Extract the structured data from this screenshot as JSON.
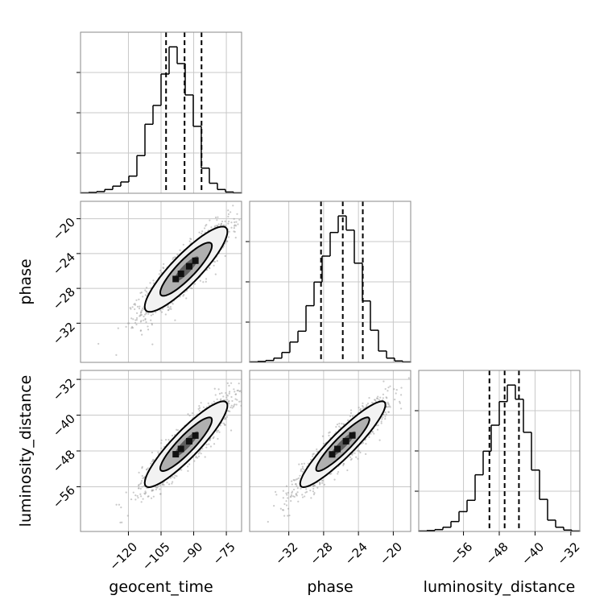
{
  "chart_data": {
    "type": "corner",
    "parameters": [
      "geocent_time",
      "phase",
      "luminosity_distance"
    ],
    "grid": true,
    "ranges": {
      "geocent_time": [
        -142,
        -68
      ],
      "phase": [
        -36.5,
        -18
      ],
      "luminosity_distance": [
        -66,
        -30
      ]
    },
    "ticks": {
      "geocent_time": [
        "-120",
        "-105",
        "-90",
        "-75"
      ],
      "phase": [
        "-32",
        "-28",
        "-24",
        "-20"
      ],
      "luminosity_distance": [
        "-56",
        "-48",
        "-40",
        "-32"
      ]
    },
    "tick_values": {
      "geocent_time": [
        -120,
        -105,
        -90,
        -75
      ],
      "phase": [
        -32,
        -28,
        -24,
        -20
      ],
      "luminosity_distance": [
        -56,
        -48,
        -40,
        -32
      ]
    },
    "hist1d": [
      {
        "parameter": "geocent_time",
        "bin_edges": [
          -142,
          -138.3,
          -134.6,
          -130.9,
          -127.2,
          -123.5,
          -119.8,
          -116.1,
          -112.4,
          -108.7,
          -105,
          -101.3,
          -97.6,
          -93.9,
          -90.2,
          -86.5,
          -82.8,
          -79.1,
          -75.4,
          -71.7,
          -68
        ],
        "counts": [
          1,
          2,
          4,
          9,
          17,
          27,
          41,
          90,
          165,
          210,
          285,
          350,
          310,
          235,
          160,
          60,
          24,
          9,
          3,
          1
        ],
        "quantiles": [
          -102.7,
          -94.2,
          -86.4
        ]
      },
      {
        "parameter": "phase",
        "bin_edges": [
          -36.5,
          -35.575,
          -34.65,
          -33.725,
          -32.8,
          -31.875,
          -30.95,
          -30.025,
          -29.1,
          -28.175,
          -27.25,
          -26.325,
          -25.4,
          -24.475,
          -23.55,
          -22.625,
          -21.7,
          -20.775,
          -19.85,
          -18.925,
          -18
        ],
        "counts": [
          1,
          2,
          4,
          9,
          21,
          43,
          66,
          120,
          170,
          225,
          275,
          310,
          280,
          210,
          130,
          68,
          24,
          9,
          3,
          1
        ],
        "quantiles": [
          -28.3,
          -25.8,
          -23.5
        ]
      },
      {
        "parameter": "luminosity_distance",
        "bin_edges": [
          -66,
          -64.2,
          -62.4,
          -60.6,
          -58.8,
          -57,
          -55.2,
          -53.4,
          -51.6,
          -49.8,
          -48,
          -46.2,
          -44.4,
          -42.6,
          -40.8,
          -39,
          -37.2,
          -35.4,
          -33.6,
          -31.8,
          -30
        ],
        "counts": [
          1,
          2,
          4,
          9,
          21,
          42,
          66,
          120,
          170,
          225,
          275,
          310,
          280,
          210,
          130,
          68,
          24,
          9,
          3,
          1
        ],
        "quantiles": [
          -50.2,
          -46.8,
          -43.6
        ]
      }
    ],
    "hist2d": [
      {
        "x": "geocent_time",
        "y": "phase",
        "center": [
          -93.5,
          -25.8
        ],
        "sigma_x": 9.5,
        "sigma_y": 2.45,
        "correlation": 0.88
      },
      {
        "x": "geocent_time",
        "y": "luminosity_distance",
        "center": [
          -93.5,
          -46.5
        ],
        "sigma_x": 9.5,
        "sigma_y": 4.8,
        "correlation": 0.9
      },
      {
        "x": "phase",
        "y": "luminosity_distance",
        "center": [
          -25.8,
          -46.5
        ],
        "sigma_x": 2.45,
        "sigma_y": 4.8,
        "correlation": 0.92
      }
    ],
    "colors": {
      "line": "#000000",
      "points": "#9e9e9e",
      "grid": "#c8c8c8"
    }
  }
}
